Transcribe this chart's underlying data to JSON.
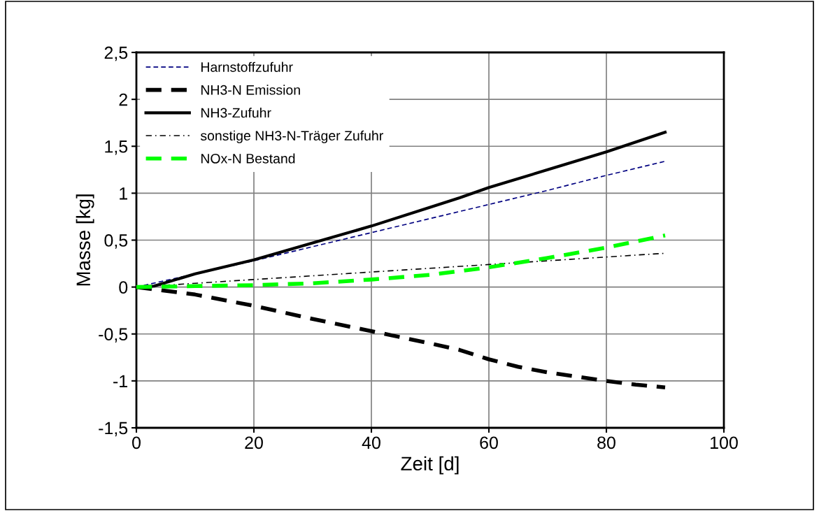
{
  "chart_data": {
    "type": "line",
    "xlabel": "Zeit [d]",
    "ylabel": "Masse [kg]",
    "xlim": [
      0,
      100
    ],
    "xticks": [
      0,
      20,
      40,
      60,
      80,
      100
    ],
    "ylim": [
      -1.5,
      2.5
    ],
    "yticks": [
      {
        "value": -1.5,
        "label": "-1,5"
      },
      {
        "value": -1,
        "label": "-1"
      },
      {
        "value": -0.5,
        "label": "-0,5"
      },
      {
        "value": 0,
        "label": "0"
      },
      {
        "value": 0.5,
        "label": "0,5"
      },
      {
        "value": 1,
        "label": "1"
      },
      {
        "value": 1.5,
        "label": "1,5"
      },
      {
        "value": 2,
        "label": "2"
      },
      {
        "value": 2.5,
        "label": "2,5"
      }
    ],
    "grid": true,
    "legend": "top left",
    "marker": "none",
    "series": [
      {
        "name": "Harnstoffzufuhr",
        "color": "#000080",
        "line_style": "dashed",
        "x": [
          0,
          10,
          20,
          30,
          40,
          50,
          60,
          70,
          80,
          90
        ],
        "values": [
          0,
          0.14,
          0.28,
          0.43,
          0.58,
          0.73,
          0.88,
          1.03,
          1.19,
          1.34
        ]
      },
      {
        "name": "NH3-N Emission",
        "color": "#000000",
        "line_style": "dashed",
        "x": [
          0,
          10,
          20,
          30,
          40,
          50,
          55,
          60,
          65,
          70,
          80,
          85,
          90
        ],
        "values": [
          0,
          -0.08,
          -0.2,
          -0.34,
          -0.47,
          -0.6,
          -0.67,
          -0.77,
          -0.85,
          -0.91,
          -1.0,
          -1.04,
          -1.07
        ]
      },
      {
        "name": "NH3-Zufuhr",
        "color": "#000000",
        "line_style": "solid",
        "x": [
          0,
          3,
          10,
          20,
          30,
          40,
          50,
          55,
          60,
          70,
          80,
          90
        ],
        "values": [
          0,
          0.01,
          0.14,
          0.29,
          0.47,
          0.65,
          0.85,
          0.95,
          1.06,
          1.25,
          1.44,
          1.65
        ]
      },
      {
        "name": "sonstige NH3-N-Träger Zufuhr",
        "color": "#000000",
        "line_style": "dashdot",
        "x": [
          0,
          10,
          20,
          30,
          40,
          50,
          60,
          70,
          80,
          90
        ],
        "values": [
          0,
          0.04,
          0.08,
          0.12,
          0.16,
          0.2,
          0.24,
          0.28,
          0.32,
          0.36
        ]
      },
      {
        "name": "NOx-N Bestand",
        "color": "#00ff00",
        "line_style": "dashed",
        "x": [
          0,
          10,
          20,
          30,
          40,
          50,
          60,
          70,
          80,
          90
        ],
        "values": [
          0,
          0.01,
          0.02,
          0.04,
          0.08,
          0.13,
          0.21,
          0.31,
          0.42,
          0.55
        ]
      }
    ]
  }
}
